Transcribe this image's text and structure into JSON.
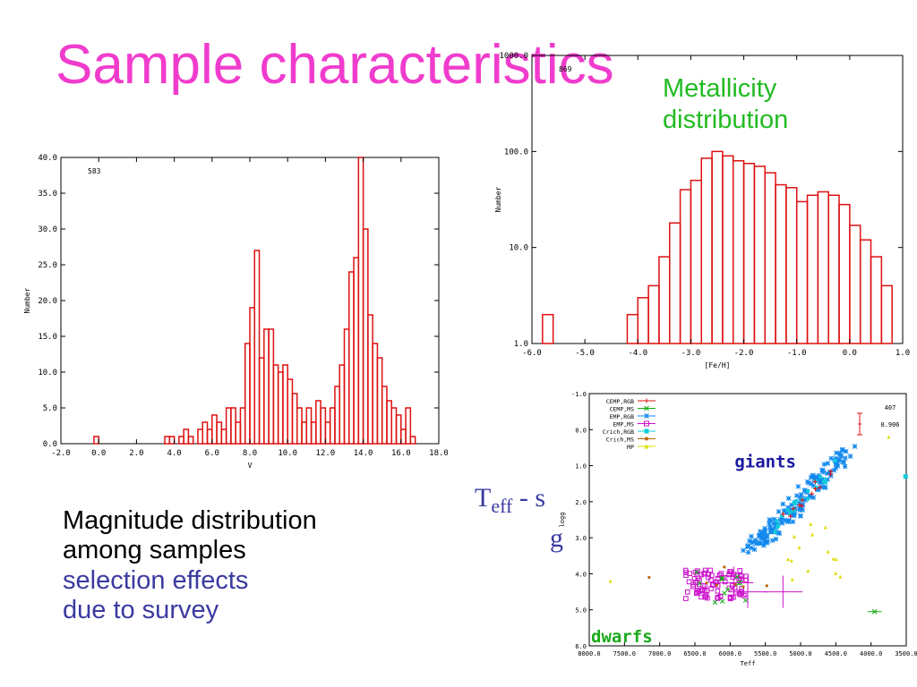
{
  "slide": {
    "title": "Sample characteristics",
    "metallicity_note": [
      "Metallicity",
      "distribution"
    ],
    "caption_black": [
      "Magnitude distribution",
      "among samples"
    ],
    "caption_blue": [
      "selection effects",
      "due to survey"
    ],
    "teff_note_base": "T",
    "teff_note_sub": "eff",
    "teff_note_rest": " - s",
    "teff_note_g": "g",
    "giants_label": "giants",
    "dwarfs_label": "dwarfs"
  },
  "colors": {
    "title": "#f03ccd",
    "metallicity_note": "#22bb22",
    "caption_blue": "#3a3aa0",
    "hist_line": "#dd1111",
    "giants": "#1a1aa0",
    "dwarfs": "#1aaa1a"
  },
  "chart_data": [
    {
      "type": "bar",
      "xlabel": "V",
      "ylabel": "Number",
      "annotation": "583",
      "xlim": [
        -2.0,
        18.0
      ],
      "ylim": [
        0.0,
        40.0
      ],
      "bin_width": 0.25,
      "xticks": [
        "-2.0",
        "0.0",
        "2.0",
        "4.0",
        "6.0",
        "8.0",
        "10.0",
        "12.0",
        "14.0",
        "16.0",
        "18.0"
      ],
      "yticks": [
        "0.0",
        "5.0",
        "10.0",
        "15.0",
        "20.0",
        "25.0",
        "30.0",
        "35.0",
        "40.0"
      ],
      "bins": [
        [
          -0.25,
          1
        ],
        [
          3.5,
          1
        ],
        [
          3.75,
          1
        ],
        [
          4.25,
          1
        ],
        [
          4.5,
          2
        ],
        [
          4.75,
          1
        ],
        [
          5.25,
          2
        ],
        [
          5.5,
          3
        ],
        [
          5.75,
          2
        ],
        [
          6.0,
          4
        ],
        [
          6.25,
          3
        ],
        [
          6.5,
          2
        ],
        [
          6.75,
          5
        ],
        [
          7.0,
          5
        ],
        [
          7.25,
          3
        ],
        [
          7.5,
          5
        ],
        [
          7.75,
          14
        ],
        [
          8.0,
          19
        ],
        [
          8.25,
          27
        ],
        [
          8.5,
          12
        ],
        [
          8.75,
          16
        ],
        [
          9.0,
          16
        ],
        [
          9.25,
          11
        ],
        [
          9.5,
          10
        ],
        [
          9.75,
          11
        ],
        [
          10.0,
          9
        ],
        [
          10.25,
          7
        ],
        [
          10.5,
          5
        ],
        [
          10.75,
          3
        ],
        [
          11.0,
          5
        ],
        [
          11.25,
          3
        ],
        [
          11.5,
          6
        ],
        [
          11.75,
          5
        ],
        [
          12.0,
          3
        ],
        [
          12.25,
          5
        ],
        [
          12.5,
          8
        ],
        [
          12.75,
          11
        ],
        [
          13.0,
          16
        ],
        [
          13.25,
          24
        ],
        [
          13.5,
          26
        ],
        [
          13.75,
          40
        ],
        [
          14.0,
          30
        ],
        [
          14.25,
          18
        ],
        [
          14.5,
          14
        ],
        [
          14.75,
          12
        ],
        [
          15.0,
          8
        ],
        [
          15.25,
          6
        ],
        [
          15.5,
          5
        ],
        [
          15.75,
          4
        ],
        [
          16.0,
          2
        ],
        [
          16.25,
          5
        ],
        [
          16.5,
          1
        ]
      ]
    },
    {
      "type": "bar",
      "xlabel": "[Fe/H]",
      "ylabel": "Number",
      "annotation": "869",
      "xlim": [
        -6.0,
        1.0
      ],
      "ylim": [
        1.0,
        1000.0
      ],
      "yscale": "log",
      "bin_width": 0.2,
      "xticks": [
        "-6.0",
        "-5.0",
        "-4.0",
        "-3.0",
        "-2.0",
        "-1.0",
        "0.0",
        "1.0"
      ],
      "yticks": [
        "1.0",
        "10.0",
        "100.0",
        "1000.0"
      ],
      "bins": [
        [
          -5.8,
          2
        ],
        [
          -4.2,
          2
        ],
        [
          -4.0,
          3
        ],
        [
          -3.8,
          4
        ],
        [
          -3.6,
          8
        ],
        [
          -3.4,
          18
        ],
        [
          -3.2,
          40
        ],
        [
          -3.0,
          50
        ],
        [
          -2.8,
          85
        ],
        [
          -2.6,
          100
        ],
        [
          -2.4,
          90
        ],
        [
          -2.2,
          80
        ],
        [
          -2.0,
          75
        ],
        [
          -1.8,
          70
        ],
        [
          -1.6,
          60
        ],
        [
          -1.4,
          45
        ],
        [
          -1.2,
          42
        ],
        [
          -1.0,
          30
        ],
        [
          -0.8,
          35
        ],
        [
          -0.6,
          38
        ],
        [
          -0.4,
          35
        ],
        [
          -0.2,
          28
        ],
        [
          0.0,
          17
        ],
        [
          0.2,
          12
        ],
        [
          0.4,
          8
        ],
        [
          0.6,
          4
        ]
      ]
    },
    {
      "type": "scatter",
      "xlabel": "Teff",
      "ylabel": "logg",
      "annotation": "407",
      "error_label": "0.906",
      "xlim": [
        8000.0,
        3500.0
      ],
      "ylim": [
        -1.0,
        6.0
      ],
      "xticks": [
        "8000.0",
        "7500.0",
        "7000.0",
        "6500.0",
        "6000.0",
        "5500.0",
        "5000.0",
        "4500.0",
        "4000.0",
        "3500.0"
      ],
      "yticks": [
        "-1.0",
        "0.0",
        "1.0",
        "2.0",
        "3.0",
        "4.0",
        "5.0",
        "6.0"
      ],
      "legend": [
        {
          "name": "CEMP,RGB",
          "color": "#dd1111",
          "marker": "plus"
        },
        {
          "name": "CEMP,MS",
          "color": "#11aa11",
          "marker": "x"
        },
        {
          "name": "EMP,RGB",
          "color": "#1188ee",
          "marker": "star"
        },
        {
          "name": "EMP,MS",
          "color": "#cc11cc",
          "marker": "box"
        },
        {
          "name": "Crich,RGB",
          "color": "#11ccdd",
          "marker": "fillbox"
        },
        {
          "name": "Crich,MS",
          "color": "#bb6600",
          "marker": "dot"
        },
        {
          "name": "MP",
          "color": "#dddd00",
          "marker": "tri"
        }
      ]
    }
  ]
}
